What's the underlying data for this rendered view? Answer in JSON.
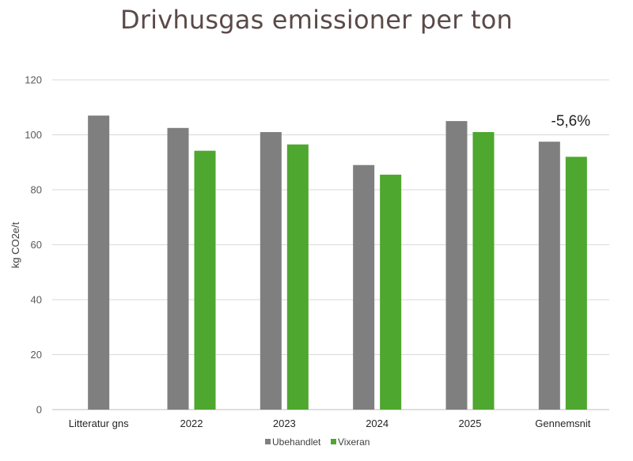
{
  "chart_data": {
    "type": "bar",
    "title": "Drivhusgas emissioner per ton",
    "xlabel": "",
    "ylabel": "kg CO2e/t",
    "ylim": [
      0,
      120
    ],
    "yticks": [
      0,
      20,
      40,
      60,
      80,
      100,
      120
    ],
    "grid": true,
    "legend_position": "bottom",
    "categories": [
      "Litteratur gns",
      "2022",
      "2023",
      "2024",
      "2025",
      "Gennemsnit"
    ],
    "series": [
      {
        "name": "Ubehandlet",
        "color": "#7f7f7f",
        "values": [
          107,
          102.5,
          101,
          89,
          105,
          97.5
        ]
      },
      {
        "name": "Vixeran",
        "color": "#4ea72e",
        "values": [
          null,
          94.2,
          96.5,
          85.5,
          101,
          92
        ]
      }
    ],
    "annotations": [
      {
        "text": "-5,6%",
        "category": "Gennemsnit"
      }
    ]
  }
}
